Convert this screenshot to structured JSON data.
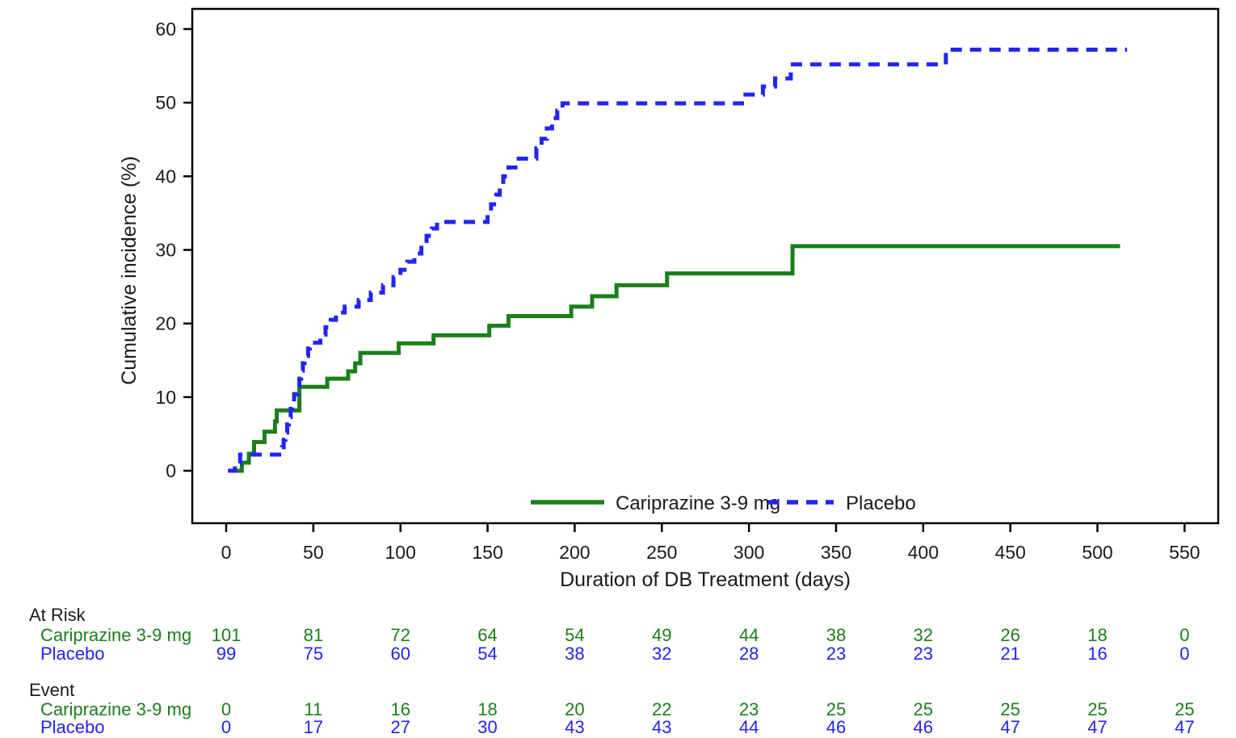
{
  "chart_data": {
    "type": "line",
    "subtype": "step-function-cumulative-incidence",
    "title": "",
    "xlabel": "Duration of DB Treatment (days)",
    "ylabel": "Cumulative incidence (%)",
    "xlim": [
      -20,
      570
    ],
    "ylim": [
      0,
      62
    ],
    "x_ticks": [
      0,
      50,
      100,
      150,
      200,
      250,
      300,
      350,
      400,
      450,
      500,
      550
    ],
    "y_ticks": [
      0,
      10,
      20,
      30,
      40,
      50,
      60
    ],
    "grid": false,
    "legend_position": "inside-bottom-center",
    "series": [
      {
        "name": "Cariprazine 3-9 mg",
        "color": "#1b7e1b",
        "line_style": "solid",
        "start_day": 5,
        "end_day": 513,
        "steps": [
          [
            9,
            1.1
          ],
          [
            13,
            2.3
          ],
          [
            16,
            3.9
          ],
          [
            22,
            5.3
          ],
          [
            28,
            6.7
          ],
          [
            29,
            8.2
          ],
          [
            42,
            11.4
          ],
          [
            58,
            12.5
          ],
          [
            70,
            13.5
          ],
          [
            74,
            14.6
          ],
          [
            77,
            16.0
          ],
          [
            99,
            17.3
          ],
          [
            119,
            18.4
          ],
          [
            151,
            19.7
          ],
          [
            162,
            21.0
          ],
          [
            198,
            22.3
          ],
          [
            210,
            23.7
          ],
          [
            224,
            25.2
          ],
          [
            253,
            26.8
          ],
          [
            325,
            30.5
          ]
        ]
      },
      {
        "name": "Placebo",
        "color": "#2424f0",
        "line_style": "dashed",
        "start_day": 1,
        "end_day": 517,
        "steps": [
          [
            5,
            1.0
          ],
          [
            8,
            2.2
          ],
          [
            32,
            3.2
          ],
          [
            33,
            4.2
          ],
          [
            34,
            5.2
          ],
          [
            35,
            6.3
          ],
          [
            36,
            7.3
          ],
          [
            37,
            8.4
          ],
          [
            38,
            9.4
          ],
          [
            39,
            10.4
          ],
          [
            41,
            11.5
          ],
          [
            42,
            12.5
          ],
          [
            43,
            13.6
          ],
          [
            44,
            14.6
          ],
          [
            45,
            15.6
          ],
          [
            47,
            16.6
          ],
          [
            48,
            17.4
          ],
          [
            54,
            18.5
          ],
          [
            57,
            19.5
          ],
          [
            60,
            20.5
          ],
          [
            63,
            21.5
          ],
          [
            68,
            22.3
          ],
          [
            76,
            23.2
          ],
          [
            83,
            24.2
          ],
          [
            90,
            25.2
          ],
          [
            96,
            26.3
          ],
          [
            100,
            27.3
          ],
          [
            104,
            28.4
          ],
          [
            108,
            29.5
          ],
          [
            112,
            30.9
          ],
          [
            115,
            31.9
          ],
          [
            118,
            32.9
          ],
          [
            121,
            33.8
          ],
          [
            150,
            35.0
          ],
          [
            152,
            36.2
          ],
          [
            155,
            37.5
          ],
          [
            157,
            38.7
          ],
          [
            159,
            40.0
          ],
          [
            162,
            41.2
          ],
          [
            166,
            42.4
          ],
          [
            178,
            43.8
          ],
          [
            181,
            45.1
          ],
          [
            184,
            46.5
          ],
          [
            187,
            47.9
          ],
          [
            190,
            48.9
          ],
          [
            193,
            49.9
          ],
          [
            296,
            51.1
          ],
          [
            308,
            52.2
          ],
          [
            315,
            53.3
          ],
          [
            324,
            55.2
          ],
          [
            413,
            57.2
          ]
        ]
      }
    ]
  },
  "legend": {
    "items": [
      {
        "label": "Cariprazine 3-9 mg",
        "swatch": "green-solid-line"
      },
      {
        "label": "Placebo",
        "swatch": "blue-dashed-line"
      }
    ]
  },
  "tables": [
    {
      "id": "at_risk",
      "title": "At Risk",
      "rows": [
        {
          "label": "Cariprazine 3-9 mg",
          "series": 0,
          "values": [
            101,
            81,
            72,
            64,
            54,
            49,
            44,
            38,
            32,
            26,
            18,
            0
          ]
        },
        {
          "label": "Placebo",
          "series": 1,
          "values": [
            99,
            75,
            60,
            54,
            38,
            32,
            28,
            23,
            23,
            21,
            16,
            0
          ]
        }
      ]
    },
    {
      "id": "event",
      "title": "Event",
      "rows": [
        {
          "label": "Cariprazine 3-9 mg",
          "series": 0,
          "values": [
            0,
            11,
            16,
            18,
            20,
            22,
            23,
            25,
            25,
            25,
            25,
            25
          ]
        },
        {
          "label": "Placebo",
          "series": 1,
          "values": [
            0,
            17,
            27,
            30,
            43,
            43,
            44,
            46,
            46,
            47,
            47,
            47
          ]
        }
      ]
    }
  ],
  "colors": {
    "cariprazine_green": "#1b7e1b",
    "placebo_blue": "#2424f0",
    "axis_black": "#000000",
    "text_black": "#1a1a1a",
    "background": "#ffffff"
  }
}
